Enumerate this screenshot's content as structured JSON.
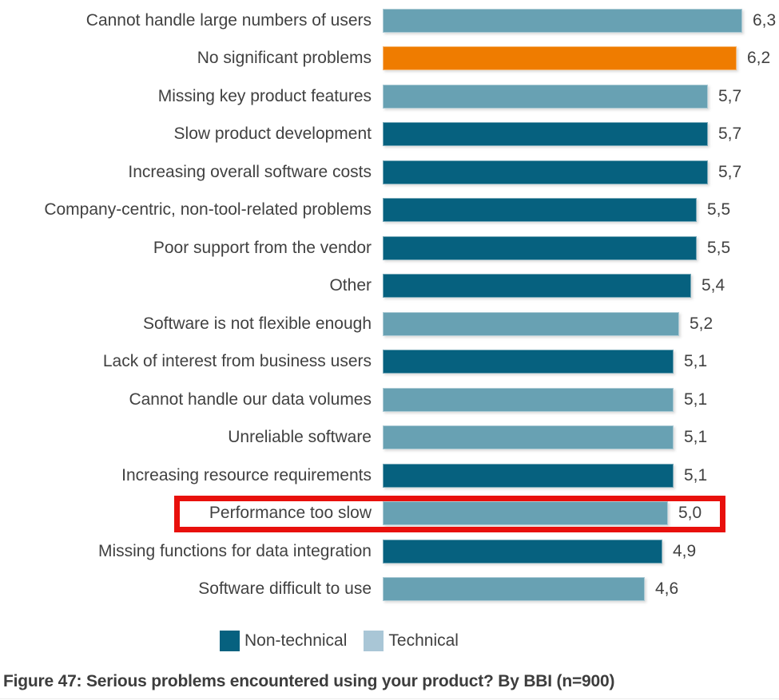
{
  "chart_data": {
    "type": "bar",
    "orientation": "horizontal",
    "title": "",
    "caption": "Figure 47: Serious problems encountered using your product? By BBI (n=900)",
    "xlim": [
      0,
      6.6
    ],
    "value_format": "comma-decimal",
    "grid": false,
    "legend_position": "bottom",
    "categories": [
      "Cannot handle large numbers of users",
      "No significant problems",
      "Missing key product features",
      "Slow product development",
      "Increasing overall software costs",
      "Company-centric, non-tool-related problems",
      "Poor support from the vendor",
      "Other",
      "Software is not flexible enough",
      "Lack of interest from business users",
      "Cannot handle our data volumes",
      "Unreliable software",
      "Increasing resource requirements",
      "Performance too slow",
      "Missing functions for data integration",
      "Software difficult to use"
    ],
    "values": [
      6.3,
      6.2,
      5.7,
      5.7,
      5.7,
      5.5,
      5.5,
      5.4,
      5.2,
      5.1,
      5.1,
      5.1,
      5.1,
      5.0,
      4.9,
      4.6
    ],
    "series_colors": {
      "non-technical": "#06617F",
      "technical": "#68A1B3",
      "orange": "#EF7C00"
    },
    "legend": {
      "items": [
        {
          "label": "Non-technical",
          "color": "#06617F"
        },
        {
          "label": "Technical",
          "color": "#A9C6D6"
        }
      ]
    },
    "highlight": {
      "category": "Performance too slow",
      "box_color": "#E8100C"
    },
    "rows": [
      {
        "label": "Cannot handle large numbers of users",
        "value": 6.3,
        "value_label": "6,3",
        "series": "technical",
        "highlighted": false
      },
      {
        "label": "No significant problems",
        "value": 6.2,
        "value_label": "6,2",
        "series": "orange",
        "highlighted": false
      },
      {
        "label": "Missing key product features",
        "value": 5.7,
        "value_label": "5,7",
        "series": "technical",
        "highlighted": false
      },
      {
        "label": "Slow product development",
        "value": 5.7,
        "value_label": "5,7",
        "series": "non-technical",
        "highlighted": false
      },
      {
        "label": "Increasing overall software costs",
        "value": 5.7,
        "value_label": "5,7",
        "series": "non-technical",
        "highlighted": false
      },
      {
        "label": "Company-centric, non-tool-related problems",
        "value": 5.5,
        "value_label": "5,5",
        "series": "non-technical",
        "highlighted": false
      },
      {
        "label": "Poor support from the vendor",
        "value": 5.5,
        "value_label": "5,5",
        "series": "non-technical",
        "highlighted": false
      },
      {
        "label": "Other",
        "value": 5.4,
        "value_label": "5,4",
        "series": "non-technical",
        "highlighted": false
      },
      {
        "label": "Software is not flexible enough",
        "value": 5.2,
        "value_label": "5,2",
        "series": "technical",
        "highlighted": false
      },
      {
        "label": "Lack of interest from business users",
        "value": 5.1,
        "value_label": "5,1",
        "series": "non-technical",
        "highlighted": false
      },
      {
        "label": "Cannot handle our data volumes",
        "value": 5.1,
        "value_label": "5,1",
        "series": "technical",
        "highlighted": false
      },
      {
        "label": "Unreliable software",
        "value": 5.1,
        "value_label": "5,1",
        "series": "technical",
        "highlighted": false
      },
      {
        "label": "Increasing resource requirements",
        "value": 5.1,
        "value_label": "5,1",
        "series": "non-technical",
        "highlighted": false
      },
      {
        "label": "Performance too slow",
        "value": 5.0,
        "value_label": "5,0",
        "series": "technical",
        "highlighted": true
      },
      {
        "label": "Missing functions for data integration",
        "value": 4.9,
        "value_label": "4,9",
        "series": "non-technical",
        "highlighted": false
      },
      {
        "label": "Software difficult to use",
        "value": 4.6,
        "value_label": "4,6",
        "series": "technical",
        "highlighted": false
      }
    ]
  }
}
